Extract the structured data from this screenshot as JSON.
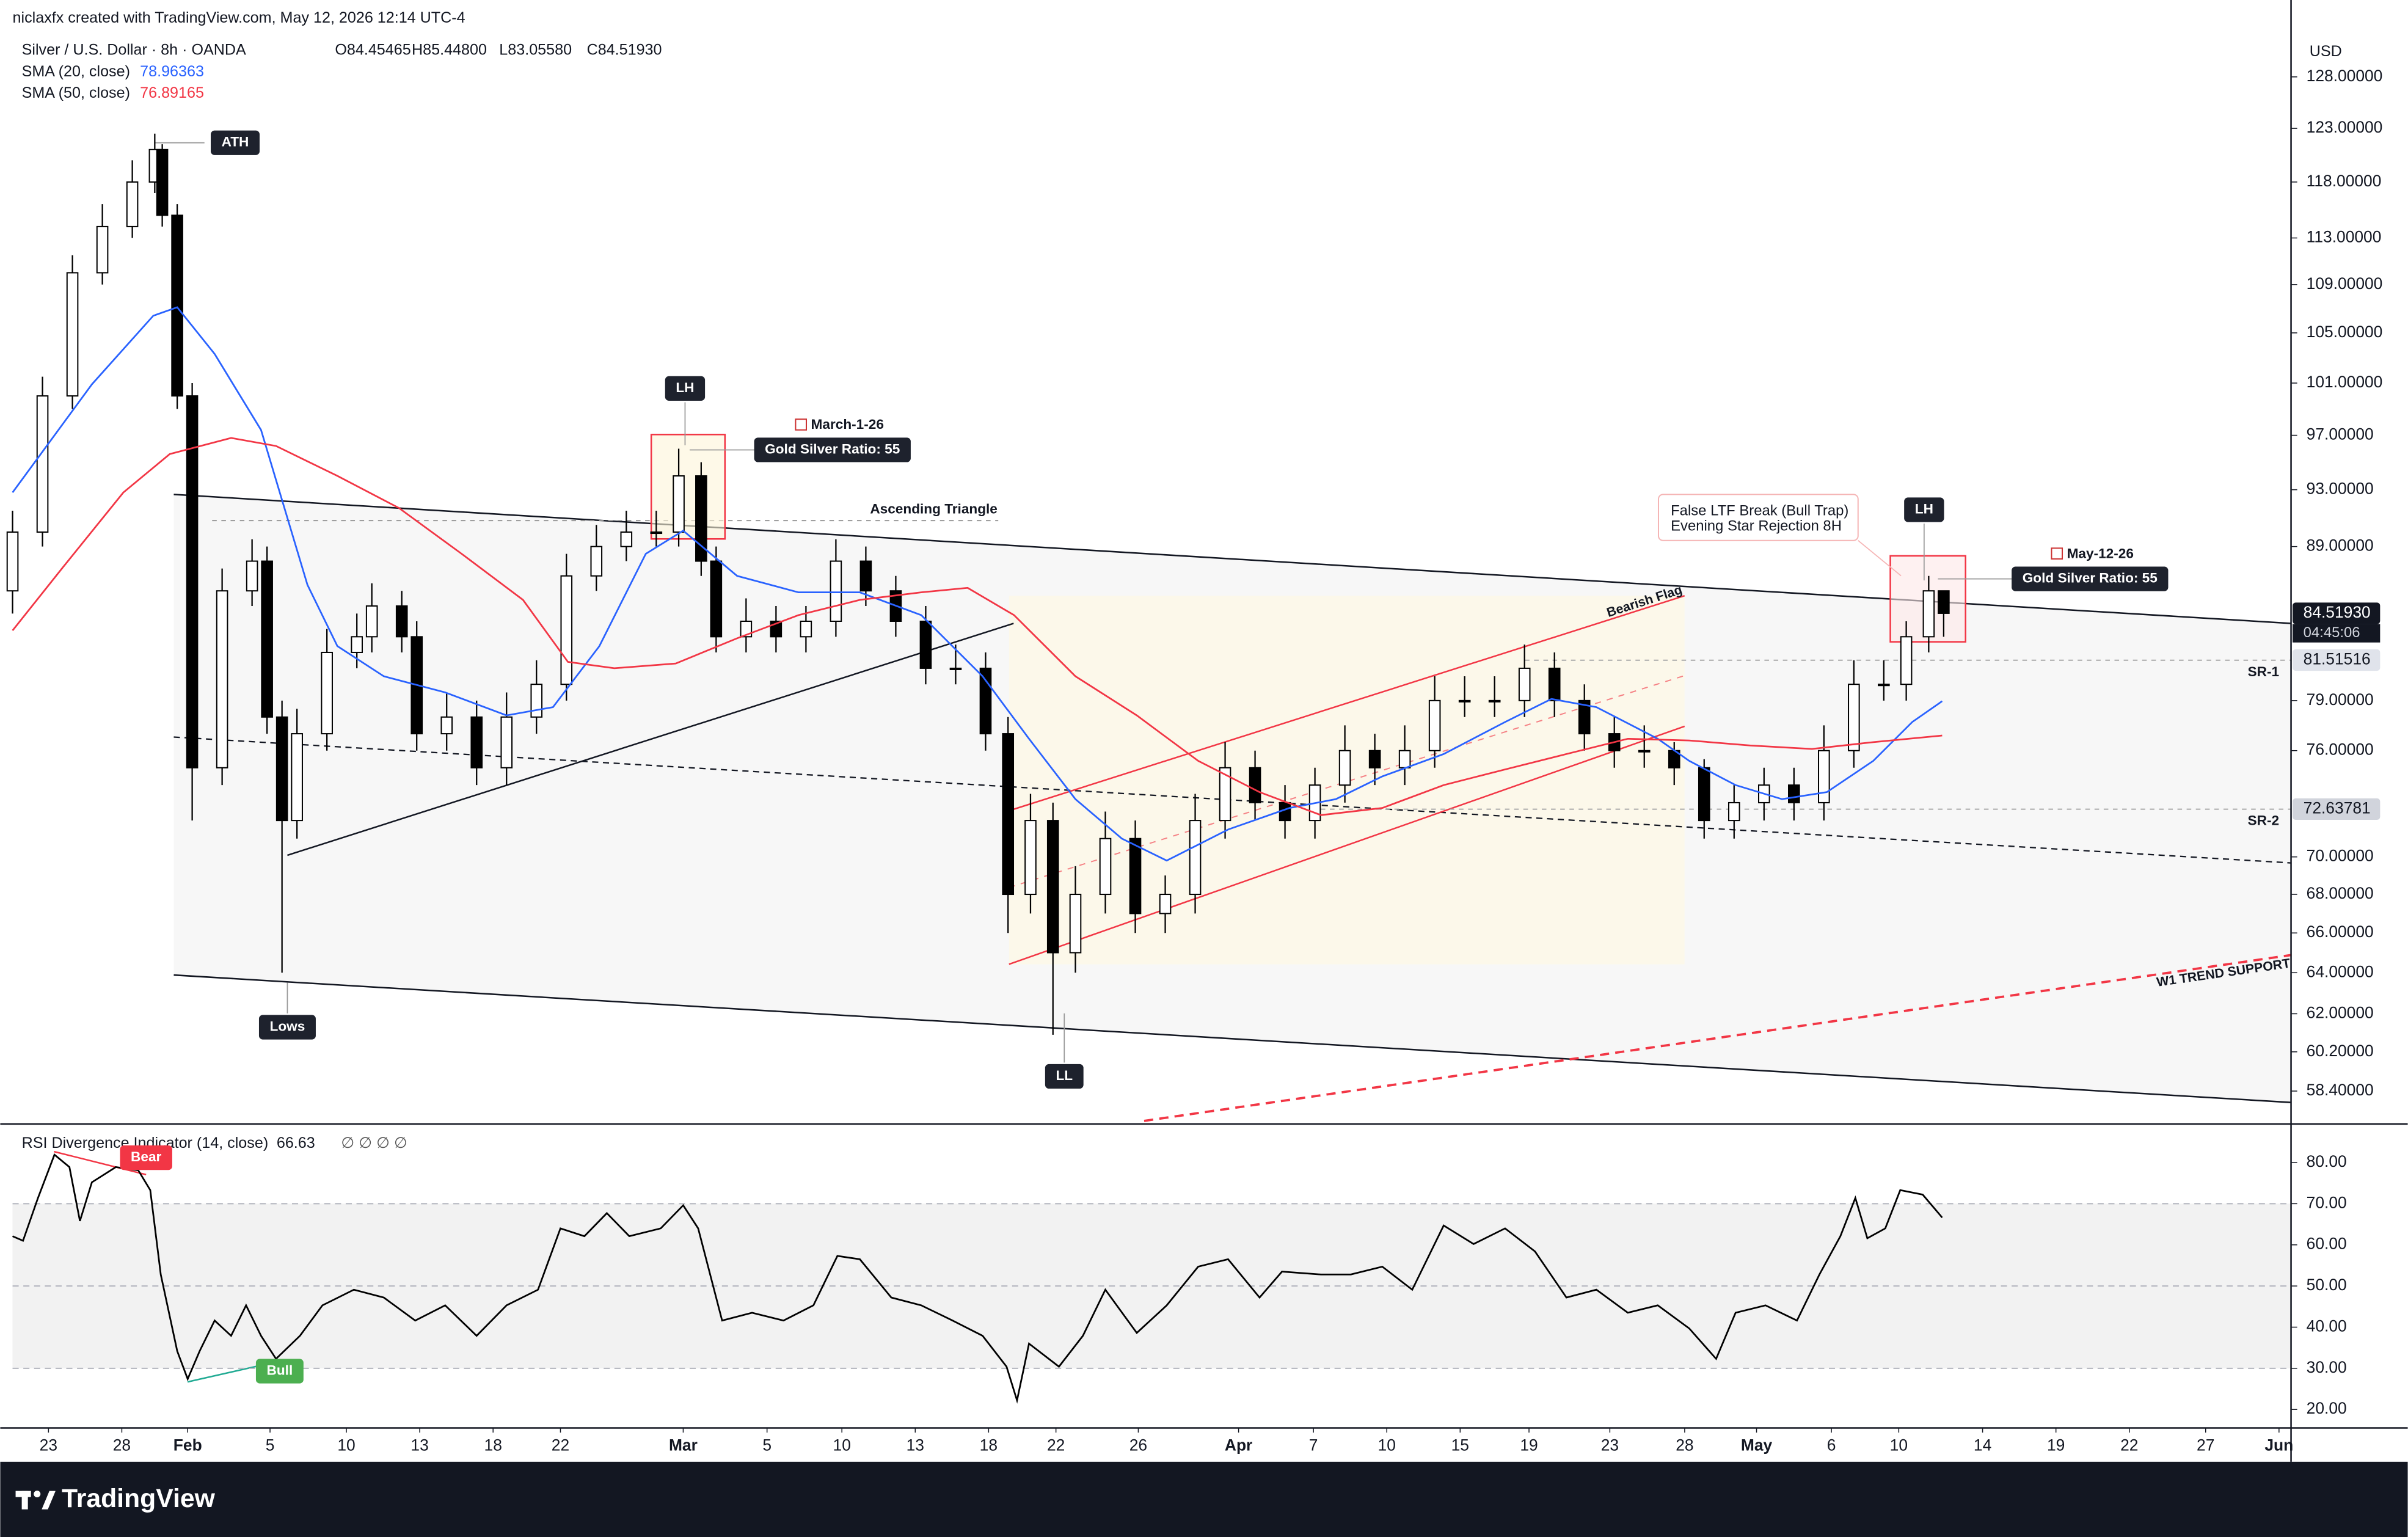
{
  "header": {
    "watermark": "niclaxfx created with TradingView.com, May 12, 2026 12:14 UTC-4",
    "ohlc": [
      "O84.45465",
      "H85.44800",
      "L83.05580",
      "C84.51930"
    ],
    "currency": "USD",
    "countdown": "04:45:06",
    "brand": "TradingView"
  },
  "chart_data": [
    {
      "type": "candlestick",
      "title": "Silver / U.S. Dollar · 8h · OANDA",
      "log_scale": true,
      "grid": false,
      "up_color": "#ffffff",
      "down_color": "#000000",
      "xlim": [
        0,
        152
      ],
      "ylim": [
        57,
        131.4
      ],
      "yticks": [
        {
          "value": 128,
          "label": "128.00000"
        },
        {
          "value": 123,
          "label": "123.00000"
        },
        {
          "value": 118,
          "label": "118.00000"
        },
        {
          "value": 113,
          "label": "113.00000"
        },
        {
          "value": 109,
          "label": "109.00000"
        },
        {
          "value": 105,
          "label": "105.00000"
        },
        {
          "value": 101,
          "label": "101.00000"
        },
        {
          "value": 97,
          "label": "97.00000"
        },
        {
          "value": 93,
          "label": "93.00000"
        },
        {
          "value": 89,
          "label": "89.00000"
        },
        {
          "value": 79,
          "label": "79.00000"
        },
        {
          "value": 76,
          "label": "76.00000"
        },
        {
          "value": 70,
          "label": "70.00000"
        },
        {
          "value": 68,
          "label": "68.00000"
        },
        {
          "value": 66,
          "label": "66.00000"
        },
        {
          "value": 64,
          "label": "64.00000"
        },
        {
          "value": 62,
          "label": "62.00000"
        },
        {
          "value": 60.2,
          "label": "60.20000"
        },
        {
          "value": 58.4,
          "label": "58.40000"
        }
      ],
      "x": [
        0,
        2,
        4,
        6,
        8,
        9.5,
        10,
        11,
        12,
        14,
        16,
        17,
        18,
        19,
        21,
        23,
        24,
        26,
        27,
        29,
        31,
        33,
        35,
        37,
        39,
        41,
        43,
        44.5,
        46,
        47,
        49,
        51,
        53,
        55,
        57,
        59,
        61,
        63,
        65,
        66.5,
        68,
        69.5,
        71,
        73,
        75,
        77,
        79,
        81,
        83,
        85,
        87,
        89,
        91,
        93,
        95,
        97,
        99,
        101,
        103,
        105,
        107,
        109,
        111,
        113,
        115,
        117,
        119,
        121,
        123,
        125,
        126.5,
        128,
        129
      ],
      "open": [
        86,
        90,
        100,
        110,
        114,
        118,
        121,
        115,
        100,
        75,
        86,
        88,
        78,
        72,
        77,
        82,
        83,
        85,
        83,
        77,
        78,
        75,
        78,
        80,
        87,
        89,
        90,
        90,
        94,
        88,
        83,
        84,
        83,
        84,
        88,
        86,
        84,
        81,
        81,
        77,
        68,
        72,
        65,
        68,
        71,
        67,
        68,
        72,
        75,
        73,
        72,
        74,
        76,
        75,
        76,
        79,
        79,
        79,
        81,
        79,
        77,
        76,
        76,
        75,
        72,
        73,
        74,
        73,
        76,
        80,
        80,
        83,
        86
      ],
      "high": [
        91.5,
        101.5,
        111.5,
        116,
        120,
        122.5,
        121.5,
        116,
        101,
        87.5,
        89.5,
        89,
        79,
        78.5,
        83.5,
        84.5,
        86.5,
        86,
        84,
        79.5,
        79,
        79.5,
        81.5,
        88.5,
        90.5,
        91.5,
        91.5,
        96,
        95,
        89,
        85.5,
        85,
        85,
        89.5,
        89,
        87,
        85,
        82.5,
        82,
        78,
        73.5,
        73,
        69.5,
        72.5,
        72,
        69,
        73.5,
        76.5,
        76,
        74,
        75,
        77.5,
        77,
        77.5,
        80.5,
        80.5,
        80.5,
        82.5,
        82,
        80,
        78,
        77.5,
        76.5,
        75.5,
        74,
        75,
        75,
        77.5,
        81.5,
        81.5,
        84,
        87,
        86
      ],
      "low": [
        84.5,
        89,
        99,
        109,
        113,
        117,
        114,
        99,
        72,
        74,
        85,
        77,
        64,
        71,
        76,
        81,
        82,
        82,
        76,
        76,
        74,
        74,
        77,
        79,
        86,
        88,
        89,
        89,
        87,
        82,
        82,
        82,
        82,
        83,
        85,
        83,
        80,
        80,
        76,
        66,
        67,
        61,
        64,
        67,
        66,
        66,
        67,
        71,
        72,
        71,
        71,
        73,
        74,
        74,
        75,
        78,
        78,
        78,
        78,
        76,
        75,
        75,
        74,
        71,
        71,
        72,
        72,
        72,
        75,
        79,
        79,
        82,
        83
      ],
      "close": [
        90,
        100,
        110,
        114,
        118,
        121,
        115,
        100,
        75,
        86,
        88,
        78,
        72,
        77,
        82,
        83,
        85,
        83,
        77,
        78,
        75,
        78,
        80,
        87,
        89,
        90,
        90,
        94,
        88,
        83,
        84,
        83,
        84,
        88,
        86,
        84,
        81,
        81,
        77,
        68,
        72,
        65,
        68,
        71,
        67,
        68,
        72,
        75,
        73,
        72,
        74,
        76,
        75,
        76,
        79,
        79,
        79,
        81,
        79,
        77,
        76,
        76,
        75,
        72,
        73,
        74,
        73,
        76,
        80,
        80,
        83,
        86,
        84.5193
      ],
      "series": [
        {
          "name": "SMA (20, close)",
          "color": "#2962ff",
          "last_label": "78.96363",
          "x": [
            0,
            5.3,
            9.4,
            11,
            13.5,
            16.6,
            19.7,
            21.7,
            24.8,
            28.9,
            33,
            36.1,
            39.2,
            42.3,
            44.8,
            48.4,
            52.5,
            56.6,
            60.7,
            64.8,
            67.9,
            71,
            74.1,
            77.1,
            81.2,
            85.3,
            88.4,
            91.5,
            95.6,
            99.7,
            102.8,
            105.8,
            109.9,
            112,
            115.1,
            118.2,
            121.2,
            124.3,
            126.9,
            128.9
          ],
          "values": [
            92.8,
            100.9,
            106.4,
            107.1,
            103.3,
            97.4,
            86.4,
            82.4,
            80.5,
            79.5,
            78.1,
            78.6,
            82.4,
            88.5,
            90.1,
            87.0,
            85.9,
            85.9,
            84.4,
            80.5,
            76.7,
            73.2,
            71.0,
            69.8,
            71.5,
            72.7,
            73.2,
            74.5,
            75.8,
            77.7,
            79.1,
            78.6,
            76.7,
            75.4,
            74.0,
            73.2,
            73.6,
            75.4,
            77.7,
            78.96363
          ]
        },
        {
          "name": "SMA (50, close)",
          "color": "#f23645",
          "last_label": "76.89165",
          "x": [
            0,
            3.3,
            7.4,
            10.5,
            14.6,
            17.6,
            21.7,
            25.8,
            30,
            34.1,
            37.1,
            40.2,
            44.3,
            48.4,
            52.5,
            56.6,
            60.7,
            63.8,
            66.9,
            71,
            75.1,
            79.2,
            83.3,
            87.4,
            91.5,
            95.6,
            99.7,
            103.8,
            107.9,
            112,
            116.1,
            120.2,
            124.3,
            128.9
          ],
          "values": [
            83.4,
            87.5,
            92.8,
            95.6,
            96.8,
            96.2,
            94.0,
            91.7,
            88.5,
            85.4,
            81.4,
            81.0,
            81.3,
            82.9,
            84.4,
            85.4,
            85.9,
            86.2,
            84.4,
            80.5,
            78.1,
            75.4,
            73.6,
            72.3,
            72.7,
            74.0,
            74.9,
            75.8,
            76.7,
            76.6,
            76.3,
            76.1,
            76.5,
            76.89165
          ]
        }
      ],
      "price_labels": [
        {
          "value": 84.5193,
          "label": "84.51930"
        },
        {
          "value": 81.51516,
          "label": "81.51516"
        },
        {
          "value": 72.63781,
          "label": "72.63781"
        }
      ],
      "annotations": [
        "ATH",
        "LH",
        "March-1-26",
        "Gold Silver Ratio: 55",
        "Ascending Triangle",
        "Lows",
        "LL",
        "Bearish Flag",
        "False LTF Break (Bull Trap)",
        "Evening Star Rejection 8H",
        "LH",
        "May-12-26",
        "Gold Silver Ratio: 55",
        "W1 TREND SUPPORT",
        "SR-1",
        "SR-2"
      ]
    },
    {
      "type": "line",
      "title": "RSI Divergence Indicator (14, close)",
      "value_label": "66.63",
      "flags": "∅ ∅ ∅ ∅",
      "grid": false,
      "xlim": [
        0,
        152
      ],
      "ylim": [
        15.5,
        89
      ],
      "yticks": [
        {
          "value": 80,
          "label": "80.00"
        },
        {
          "value": 70,
          "label": "70.00"
        },
        {
          "value": 60,
          "label": "60.00"
        },
        {
          "value": 50,
          "label": "50.00"
        },
        {
          "value": 40,
          "label": "40.00"
        },
        {
          "value": 30,
          "label": "30.00"
        },
        {
          "value": 20,
          "label": "20.00"
        }
      ],
      "band": [
        30,
        70
      ],
      "levels": [
        70,
        50,
        30
      ],
      "xticks": [
        {
          "value": 2.4,
          "label": "23"
        },
        {
          "value": 7.3,
          "label": "28"
        },
        {
          "value": 11.7,
          "label": "Feb"
        },
        {
          "value": 17.2,
          "label": "5"
        },
        {
          "value": 22.3,
          "label": "10"
        },
        {
          "value": 27.2,
          "label": "13"
        },
        {
          "value": 32.1,
          "label": "18"
        },
        {
          "value": 36.6,
          "label": "22"
        },
        {
          "value": 44.8,
          "label": "Mar"
        },
        {
          "value": 50.4,
          "label": "5"
        },
        {
          "value": 55.4,
          "label": "10"
        },
        {
          "value": 60.3,
          "label": "13"
        },
        {
          "value": 65.2,
          "label": "18"
        },
        {
          "value": 69.7,
          "label": "22"
        },
        {
          "value": 75.2,
          "label": "26"
        },
        {
          "value": 81.9,
          "label": "Apr"
        },
        {
          "value": 86.9,
          "label": "7"
        },
        {
          "value": 91.8,
          "label": "10"
        },
        {
          "value": 96.7,
          "label": "15"
        },
        {
          "value": 101.3,
          "label": "19"
        },
        {
          "value": 106.7,
          "label": "23"
        },
        {
          "value": 111.7,
          "label": "28"
        },
        {
          "value": 116.5,
          "label": "May"
        },
        {
          "value": 121.5,
          "label": "6"
        },
        {
          "value": 126.0,
          "label": "10"
        },
        {
          "value": 131.6,
          "label": "14"
        },
        {
          "value": 136.5,
          "label": "19"
        },
        {
          "value": 141.4,
          "label": "22"
        },
        {
          "value": 146.5,
          "label": "27"
        },
        {
          "value": 151.4,
          "label": "Jun"
        }
      ],
      "series": [
        {
          "color": "#000000",
          "x": [
            0,
            0.7,
            1.7,
            2.8,
            3.8,
            4.5,
            5.3,
            6.9,
            8.4,
            9.2,
            9.9,
            11,
            11.7,
            12.5,
            13.5,
            14.6,
            15.6,
            16.6,
            17.6,
            19.2,
            20.7,
            22.8,
            24.8,
            26.9,
            28.9,
            31,
            33,
            35.1,
            36.6,
            38.2,
            39.7,
            41.2,
            43.3,
            44.8,
            45.8,
            47.4,
            49.4,
            51.5,
            53.5,
            55.1,
            56.6,
            58.7,
            60.7,
            62.8,
            64.8,
            66.4,
            67.1,
            67.9,
            69.9,
            71.5,
            73,
            75.1,
            77.1,
            79.2,
            81.2,
            83.3,
            84.8,
            87.4,
            89.4,
            91.5,
            93.5,
            95.6,
            97.6,
            99.7,
            101.7,
            103.8,
            105.8,
            107.9,
            109.9,
            112,
            113.8,
            115.1,
            117.1,
            119.2,
            120.7,
            122.1,
            123.1,
            123.9,
            125.1,
            126.1,
            127.6,
            128.9
          ],
          "values": [
            62.1,
            61,
            71.4,
            81.9,
            78.9,
            65.8,
            75.2,
            78.9,
            78.1,
            73.3,
            52.8,
            34.2,
            27.4,
            34.2,
            41.6,
            37.9,
            45.3,
            37.9,
            32.3,
            37.9,
            45.3,
            49.1,
            47.2,
            41.6,
            45.3,
            37.9,
            45.3,
            49.1,
            64,
            62.1,
            67.7,
            62.1,
            64,
            69.6,
            64,
            41.6,
            43.5,
            41.6,
            45.3,
            57.3,
            56.5,
            47.2,
            45.3,
            41.6,
            37.9,
            30.4,
            22.2,
            36,
            30.4,
            37.9,
            49.1,
            38.6,
            45.3,
            54.7,
            56.5,
            47.2,
            53.5,
            52.8,
            52.8,
            54.7,
            49.1,
            64.7,
            60.2,
            64,
            58.4,
            47.2,
            49.1,
            43.5,
            45.3,
            39.7,
            32.3,
            43.5,
            45.3,
            41.6,
            52.8,
            62.1,
            71.4,
            61.6,
            64,
            73.3,
            72.2,
            66.63
          ]
        }
      ],
      "annotations": [
        "Bear",
        "Bull"
      ]
    }
  ]
}
